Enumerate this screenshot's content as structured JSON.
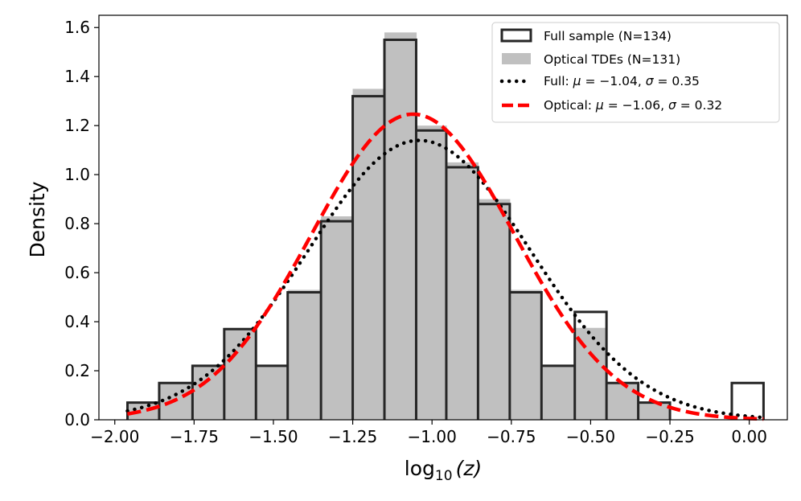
{
  "chart_data": {
    "type": "histogram",
    "title": "",
    "xlabel_base": "log",
    "xlabel_sub": "10",
    "xlabel_arg": "(z)",
    "ylabel": "Density",
    "xlim": [
      -2.05,
      0.12
    ],
    "ylim": [
      0,
      1.65
    ],
    "x_ticks": [
      -2.0,
      -1.75,
      -1.5,
      -1.25,
      -1.0,
      -0.75,
      -0.5,
      -0.25,
      0.0
    ],
    "x_tick_labels": [
      "−2.00",
      "−1.75",
      "−1.50",
      "−1.25",
      "−1.00",
      "−0.75",
      "−0.50",
      "−0.25",
      "0.00"
    ],
    "y_ticks": [
      0.0,
      0.2,
      0.4,
      0.6,
      0.8,
      1.0,
      1.2,
      1.4,
      1.6
    ],
    "y_tick_labels": [
      "0.0",
      "0.2",
      "0.4",
      "0.6",
      "0.8",
      "1.0",
      "1.2",
      "1.4",
      "1.6"
    ],
    "bin_edges": [
      -1.96,
      -1.86,
      -1.755,
      -1.655,
      -1.555,
      -1.455,
      -1.35,
      -1.25,
      -1.15,
      -1.05,
      -0.955,
      -0.855,
      -0.755,
      -0.655,
      -0.55,
      -0.45,
      -0.35,
      -0.25,
      -0.155,
      -0.055,
      0.045
    ],
    "series": [
      {
        "name": "Full sample (N=134)",
        "style": "step-outline",
        "color": "#262626",
        "values": [
          0.07,
          0.15,
          0.22,
          0.37,
          0.22,
          0.52,
          0.81,
          1.32,
          1.55,
          1.18,
          1.03,
          0.88,
          0.52,
          0.22,
          0.44,
          0.15,
          0.07,
          0.0,
          0.0,
          0.15
        ]
      },
      {
        "name": "Optical TDEs (N=131)",
        "style": "filled",
        "color": "#c0c0c0",
        "values": [
          0.075,
          0.15,
          0.225,
          0.375,
          0.225,
          0.53,
          0.83,
          1.35,
          1.58,
          1.2,
          1.05,
          0.9,
          0.53,
          0.225,
          0.375,
          0.15,
          0.075,
          0.0,
          0.0,
          0.0
        ]
      },
      {
        "name": "Full: μ = −1.04, σ = 0.35",
        "legend_parts": [
          "Full: ",
          "μ",
          " = −1.04, ",
          "σ",
          " = 0.35"
        ],
        "style": "dotted-curve",
        "color": "#000000",
        "mu": -1.04,
        "sigma": 0.35,
        "norm_area": 1.0,
        "x_range": [
          -1.96,
          0.045
        ]
      },
      {
        "name": "Optical: μ = −1.06, σ = 0.32",
        "legend_parts": [
          "Optical:  ",
          "μ",
          " = −1.06,  ",
          "σ",
          " = 0.32"
        ],
        "style": "dashed-curve",
        "color": "#ff0000",
        "mu": -1.06,
        "sigma": 0.32,
        "norm_area": 1.0,
        "x_range": [
          -1.96,
          0.045
        ]
      }
    ],
    "legend_position": "top-right",
    "grid": false
  }
}
